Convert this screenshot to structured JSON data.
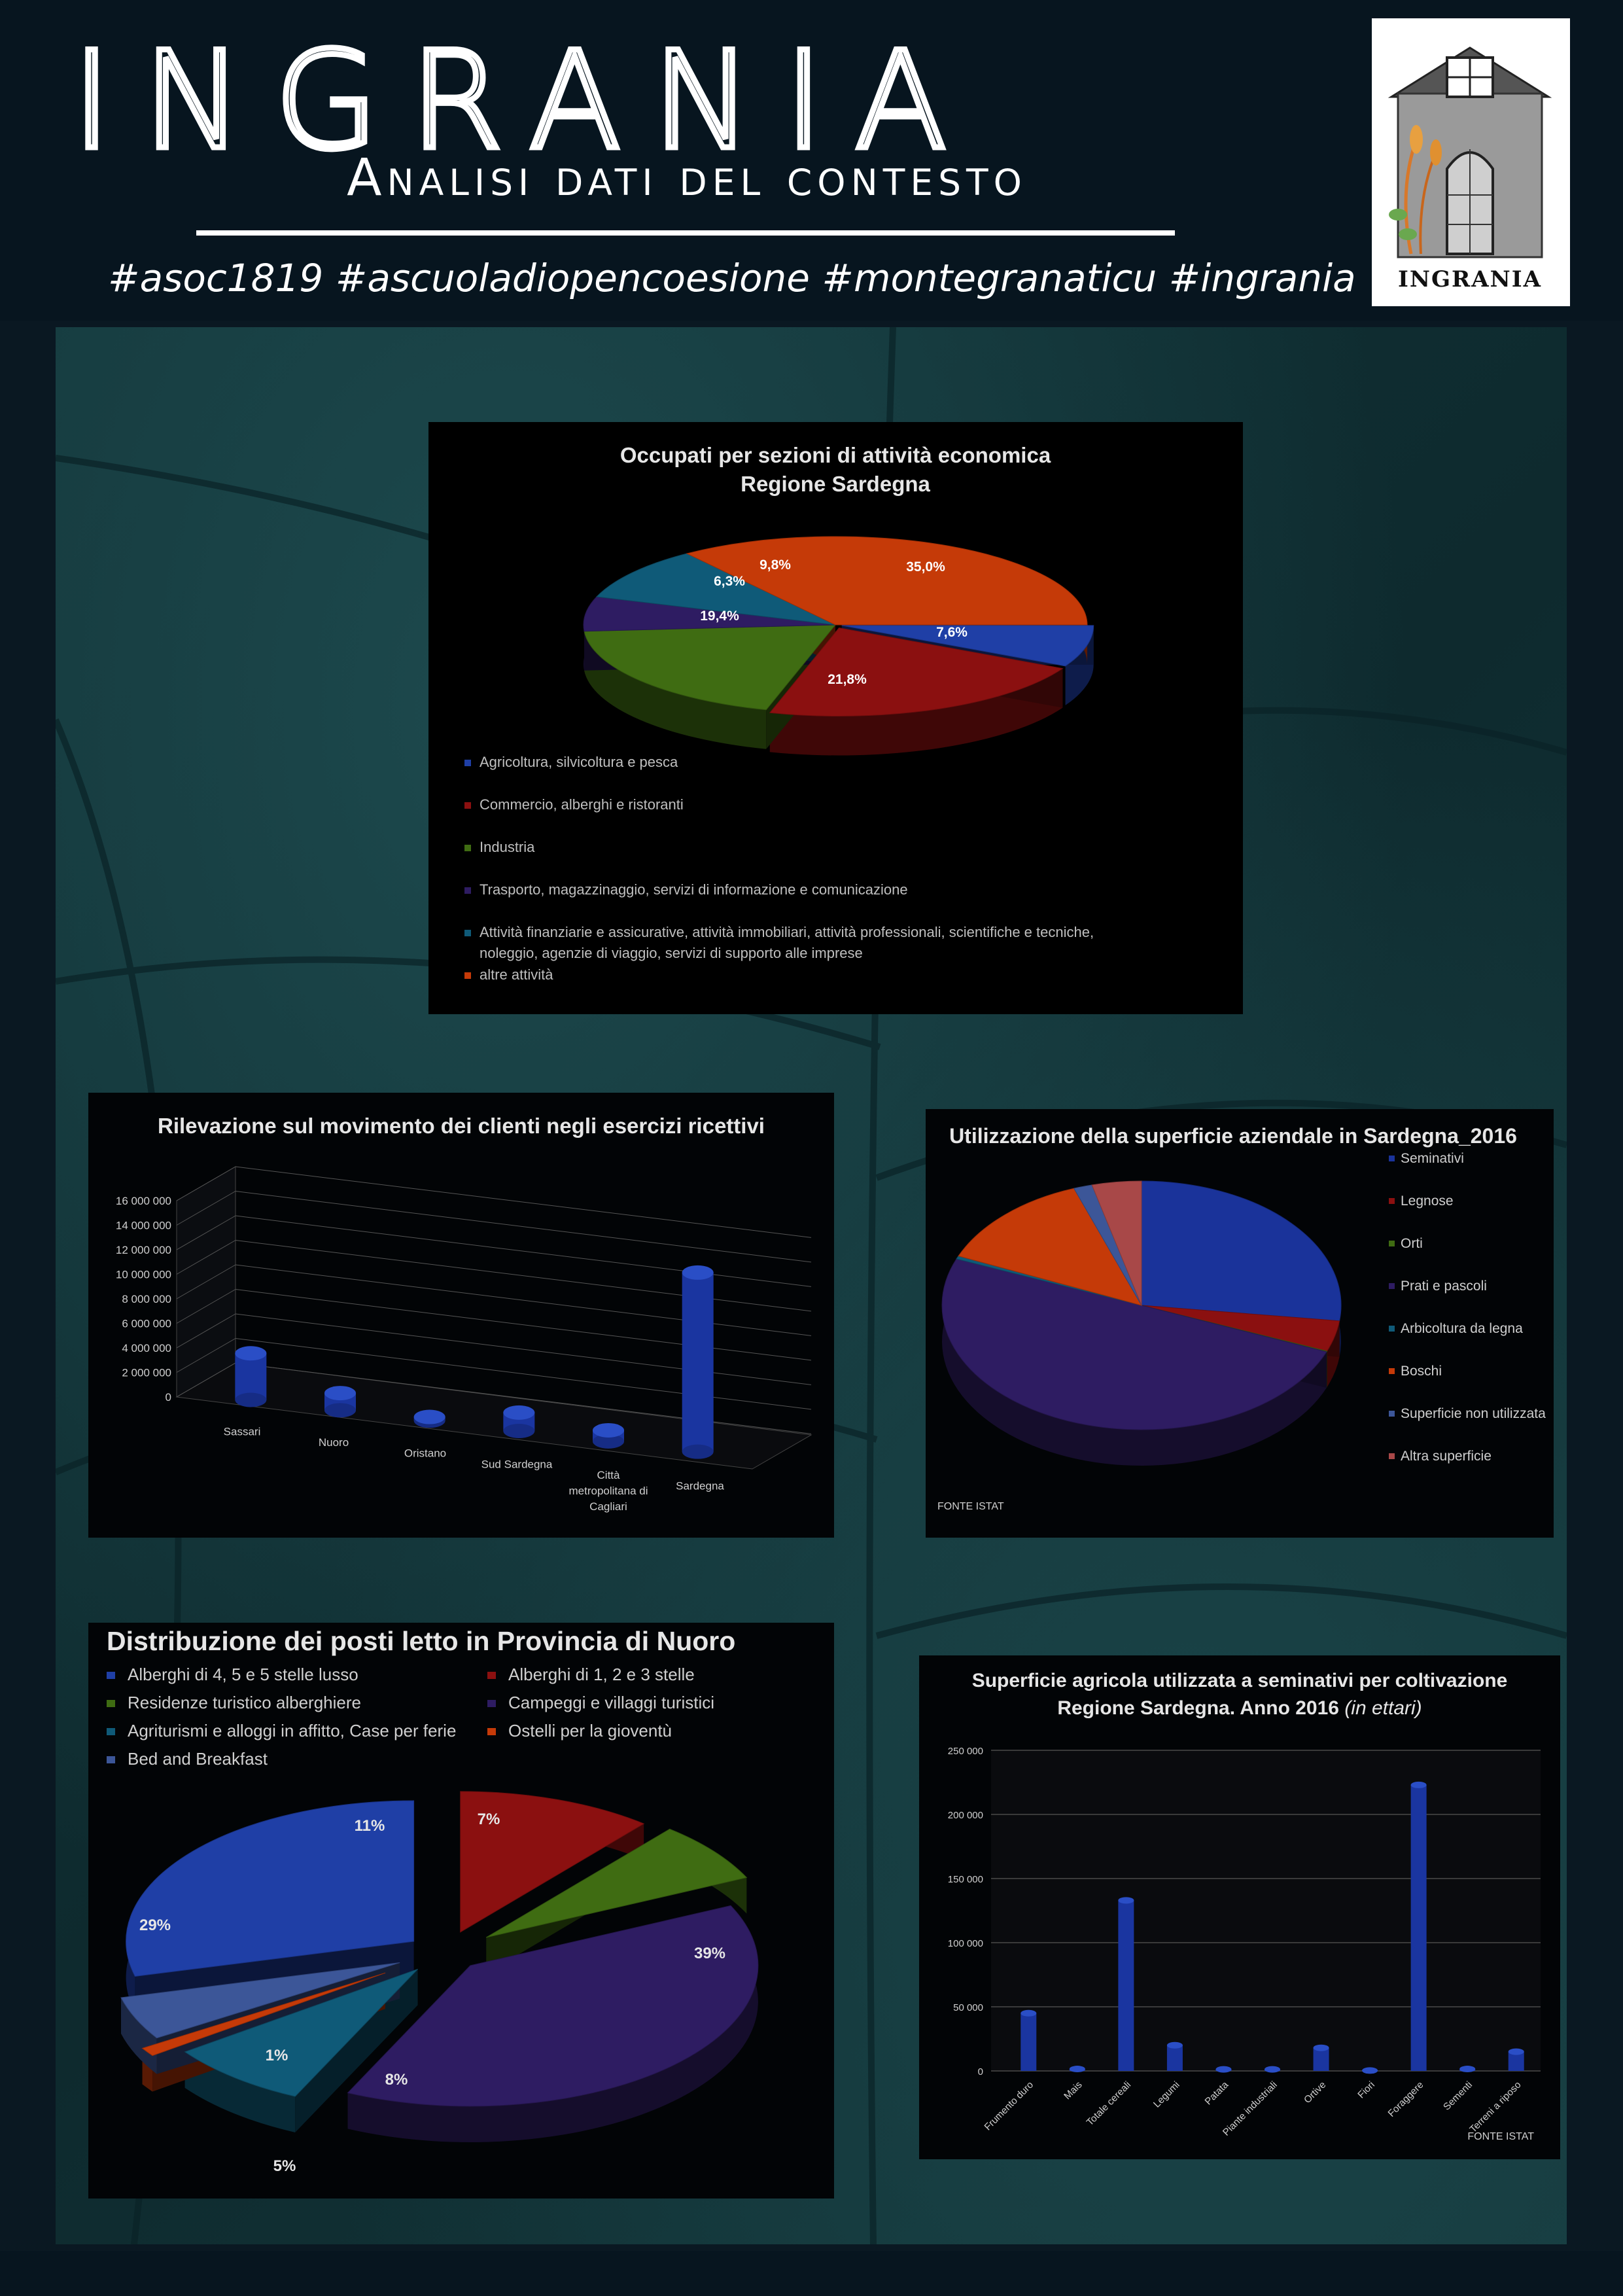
{
  "header": {
    "title": "INGRANIA",
    "subtitle": "Analisi dati del contesto",
    "hashtags": "#asoc1819 #ascuoladiopencoesione #montegranaticu #ingrania",
    "logo_text": "INGRANIA"
  },
  "colors": {
    "background": "#0a1822",
    "blue": "#1f3fa6",
    "red": "#8b1010",
    "green": "#3f6c12",
    "purple": "#2e1c62",
    "teal": "#0f5a78",
    "orange": "#c53a08",
    "light_blue": "#3c5698",
    "pink": "#a84848"
  },
  "chart_data": [
    {
      "id": "occupati",
      "type": "pie",
      "title": "Occupati per sezioni di attività economica",
      "subtitle": "Regione Sardegna",
      "slices": [
        {
          "label": "Agricoltura, silvicoltura e pesca",
          "value": 7.6,
          "display": "7,6%",
          "color": "#1f3fa6"
        },
        {
          "label": "Commercio, alberghi e ristoranti",
          "value": 21.8,
          "display": "21,8%",
          "color": "#8b1010"
        },
        {
          "label": "Industria",
          "value": 19.4,
          "display": "19,4%",
          "color": "#3f6c12"
        },
        {
          "label": "Trasporto, magazzinaggio, servizi di informazione e comunicazione",
          "value": 6.3,
          "display": "6,3%",
          "color": "#2e1c62"
        },
        {
          "label": "Attività finanziarie e assicurative, attività immobiliari, attività professionali, scientifiche e tecniche,",
          "label2": "noleggio, agenzie di viaggio, servizi di supporto alle imprese",
          "value": 9.8,
          "display": "9,8%",
          "color": "#0f5a78"
        },
        {
          "label": "altre attività",
          "value": 35.0,
          "display": "35,0%",
          "color": "#c53a08"
        }
      ],
      "legend": "bottom"
    },
    {
      "id": "movimento",
      "type": "bar",
      "title": "Rilevazione sul movimento dei clienti negli esercizi ricettivi",
      "categories": [
        "Sassari",
        "Nuoro",
        "Oristano",
        "Sud Sardegna",
        "Città metropolitana di Cagliari",
        "Sardegna"
      ],
      "category_lines": [
        [
          "Sassari"
        ],
        [
          "Nuoro"
        ],
        [
          "Oristano"
        ],
        [
          "Sud Sardegna"
        ],
        [
          "Città",
          "metropolitana di",
          "Cagliari"
        ],
        [
          "Sardegna"
        ]
      ],
      "values": [
        3800000,
        1400000,
        300000,
        1500000,
        900000,
        14600000
      ],
      "yticks": [
        "16 000 000",
        "14 000 000",
        "12 000 000",
        "10 000 000",
        "8 000 000",
        "6 000 000",
        "4 000 000",
        "2 000 000",
        "0"
      ],
      "ylim": [
        0,
        16000000
      ],
      "grid": true
    },
    {
      "id": "superficie",
      "type": "pie",
      "title": "Utilizzazione della superficie aziendale in Sardegna_2016",
      "source": "FONTE ISTAT",
      "slices": [
        {
          "label": "Seminativi",
          "value": 27.0,
          "color": "#1a339a"
        },
        {
          "label": "Legnose",
          "value": 4.0,
          "color": "#8b1010"
        },
        {
          "label": "Orti",
          "value": 0.1,
          "color": "#3f6c12"
        },
        {
          "label": "Prati e pascoli",
          "value": 50.0,
          "color": "#2e1c62"
        },
        {
          "label": "Arbicoltura da legna",
          "value": 0.4,
          "color": "#0f5a78"
        },
        {
          "label": "Boschi",
          "value": 13.0,
          "color": "#c53a08"
        },
        {
          "label": "Superficie non utilizzata",
          "value": 1.5,
          "color": "#3c5698"
        },
        {
          "label": "Altra superficie",
          "value": 4.0,
          "color": "#a84848"
        }
      ],
      "legend": "right"
    },
    {
      "id": "posti-letto",
      "type": "pie",
      "title": "Distribuzione dei posti letto in Provincia di Nuoro",
      "slices": [
        {
          "label": "Alberghi di 4, 5 e 5 stelle lusso",
          "value": 29,
          "display": "29%",
          "color": "#1f3fa6"
        },
        {
          "label": "Alberghi di 1, 2 e 3 stelle",
          "value": 11,
          "display": "11%",
          "color": "#8b1010"
        },
        {
          "label": "Residenze turistico alberghiere",
          "value": 7,
          "display": "7%",
          "color": "#3f6c12"
        },
        {
          "label": "Campeggi e villaggi turistici",
          "value": 39,
          "display": "39%",
          "color": "#2e1c62"
        },
        {
          "label": "Agriturismi e alloggi in affitto, Case per ferie",
          "value": 8,
          "display": "8%",
          "color": "#0f5a78"
        },
        {
          "label": "Ostelli per la gioventù",
          "value": 1,
          "display": "1%",
          "color": "#c53a08"
        },
        {
          "label": "Bed and Breakfast",
          "value": 5,
          "display": "5%",
          "color": "#3c5698"
        }
      ],
      "legend": "top"
    },
    {
      "id": "seminativi",
      "type": "bar",
      "title": "Superficie agricola utilizzata a seminativi per coltivazione",
      "subtitle": "Regione Sardegna. Anno 2016",
      "subtitle_italic": "(in ettari)",
      "source": "FONTE ISTAT",
      "categories": [
        "Frumento duro",
        "Mais",
        "Totale cereali",
        "Legumi",
        "Patata",
        "Piante industriali",
        "Ortive",
        "Fiori",
        "Foraggere",
        "Sementi",
        "Terreni a riposo"
      ],
      "values": [
        45000,
        1500,
        133000,
        20000,
        1200,
        1200,
        18000,
        300,
        223000,
        1500,
        15000
      ],
      "yticks": [
        "250 000",
        "200 000",
        "150 000",
        "100 000",
        "50 000",
        "0"
      ],
      "ylim": [
        0,
        250000
      ],
      "grid": true
    }
  ]
}
